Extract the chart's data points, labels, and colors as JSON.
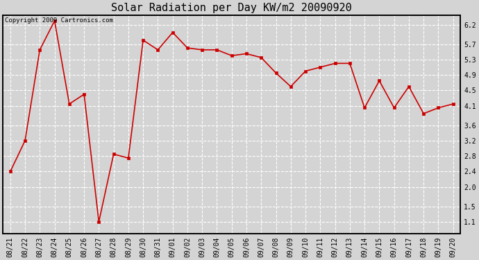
{
  "title": "Solar Radiation per Day KW/m2 20090920",
  "copyright_text": "Copyright 2009 Cartronics.com",
  "dates": [
    "08/21",
    "08/22",
    "08/23",
    "08/24",
    "08/25",
    "08/26",
    "08/27",
    "08/28",
    "08/29",
    "08/30",
    "08/31",
    "09/01",
    "09/02",
    "09/03",
    "09/04",
    "09/05",
    "09/06",
    "09/07",
    "09/08",
    "09/09",
    "09/10",
    "09/11",
    "09/12",
    "09/13",
    "09/14",
    "09/15",
    "09/16",
    "09/17",
    "09/18",
    "09/19",
    "09/20"
  ],
  "values": [
    2.4,
    3.2,
    5.55,
    6.3,
    4.15,
    4.4,
    1.1,
    2.85,
    2.75,
    5.8,
    5.55,
    6.0,
    5.6,
    5.55,
    5.55,
    5.4,
    5.45,
    5.35,
    4.95,
    4.6,
    5.0,
    5.1,
    5.2,
    5.2,
    4.05,
    4.75,
    4.05,
    4.6,
    3.9,
    4.05,
    4.15
  ],
  "yticks": [
    1.1,
    1.5,
    2.0,
    2.4,
    2.8,
    3.2,
    3.6,
    4.1,
    4.5,
    4.9,
    5.3,
    5.7,
    6.2
  ],
  "ylim": [
    0.8,
    6.45
  ],
  "line_color": "#cc0000",
  "marker": "s",
  "marker_size": 2.5,
  "bg_color": "#d4d4d4",
  "plot_bg_color": "#d4d4d4",
  "grid_color": "#ffffff",
  "title_fontsize": 11,
  "tick_fontsize": 7,
  "copyright_fontsize": 6.5
}
